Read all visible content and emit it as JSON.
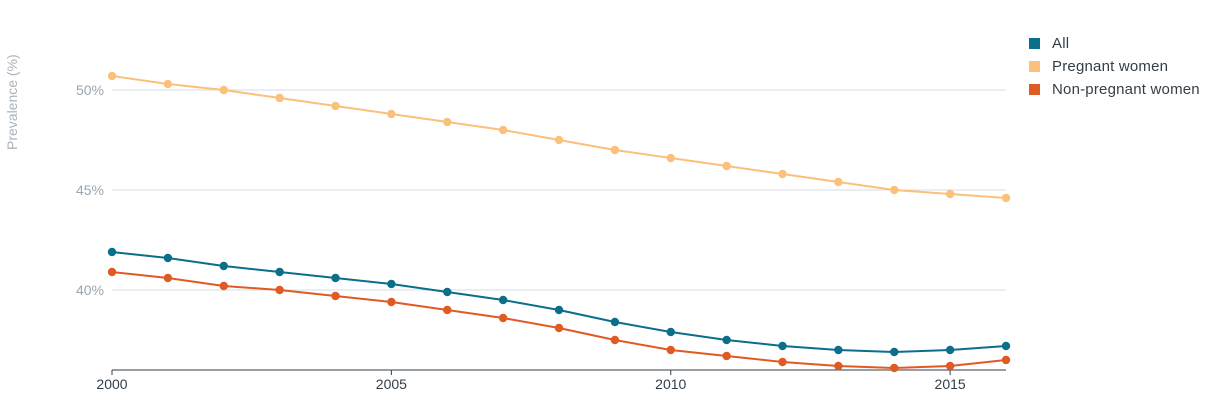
{
  "chart_data": {
    "type": "line",
    "title": "",
    "xlabel": "",
    "ylabel": "Prevalence (%)",
    "x": [
      2000,
      2001,
      2002,
      2003,
      2004,
      2005,
      2006,
      2007,
      2008,
      2009,
      2010,
      2011,
      2012,
      2013,
      2014,
      2015,
      2016
    ],
    "xlim": [
      2000,
      2016
    ],
    "ylim": [
      36,
      53
    ],
    "x_ticks": [
      2000,
      2005,
      2010,
      2015
    ],
    "y_ticks": [
      40,
      45,
      50
    ],
    "y_tick_labels": [
      "40%",
      "45%",
      "50%"
    ],
    "grid": "horizontal",
    "legend_position": "right",
    "series": [
      {
        "name": "All",
        "color": "#0b6e8a",
        "values": [
          41.9,
          41.6,
          41.2,
          40.9,
          40.6,
          40.3,
          39.9,
          39.5,
          39.0,
          38.4,
          37.9,
          37.5,
          37.2,
          37.0,
          36.9,
          37.0,
          37.2
        ]
      },
      {
        "name": "Pregnant women",
        "color": "#fbc07c",
        "values": [
          50.7,
          50.3,
          50.0,
          49.6,
          49.2,
          48.8,
          48.4,
          48.0,
          47.5,
          47.0,
          46.6,
          46.2,
          45.8,
          45.4,
          45.0,
          44.8,
          44.6
        ]
      },
      {
        "name": "Non-pregnant women",
        "color": "#e05a23",
        "values": [
          40.9,
          40.6,
          40.2,
          40.0,
          39.7,
          39.4,
          39.0,
          38.6,
          38.1,
          37.5,
          37.0,
          36.7,
          36.4,
          36.2,
          36.1,
          36.2,
          36.5
        ]
      }
    ]
  }
}
